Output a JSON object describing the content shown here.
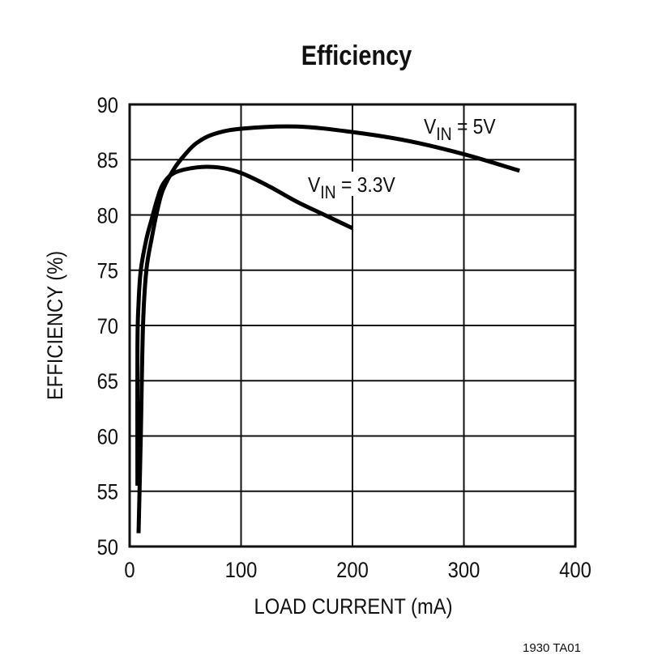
{
  "chart_data": {
    "type": "line",
    "title": "Efficiency",
    "xlabel": "LOAD CURRENT (mA)",
    "ylabel": "EFFICIENCY (%)",
    "xlim": [
      0,
      400
    ],
    "ylim": [
      50,
      90
    ],
    "xticks": [
      0,
      100,
      200,
      300,
      400
    ],
    "yticks": [
      50,
      55,
      60,
      65,
      70,
      75,
      80,
      85,
      90
    ],
    "grid": true,
    "line_color": "#000000",
    "series": [
      {
        "name": "VIN = 5V",
        "label_main": "V",
        "label_sub": "IN",
        "label_rest": " = 5V",
        "x": [
          8,
          10,
          12,
          15,
          20,
          25,
          30,
          40,
          50,
          60,
          75,
          100,
          150,
          200,
          250,
          300,
          350
        ],
        "y": [
          51.2,
          60,
          70,
          75,
          78,
          80.5,
          82.3,
          84.2,
          85.5,
          86.5,
          87.3,
          87.8,
          88,
          87.5,
          86.7,
          85.5,
          84
        ]
      },
      {
        "name": "VIN = 3.3V",
        "label_main": "V",
        "label_sub": "IN",
        "label_rest": " = 3.3V",
        "x": [
          7,
          7,
          8,
          10,
          15,
          20,
          25,
          30,
          40,
          60,
          80,
          100,
          125,
          150,
          175,
          200
        ],
        "y": [
          55.5,
          68,
          72,
          75,
          77.8,
          79.7,
          81.5,
          82.8,
          83.8,
          84.3,
          84.3,
          83.8,
          82.6,
          81.2,
          80,
          78.8
        ]
      }
    ],
    "footnote": "1930 TA01"
  }
}
